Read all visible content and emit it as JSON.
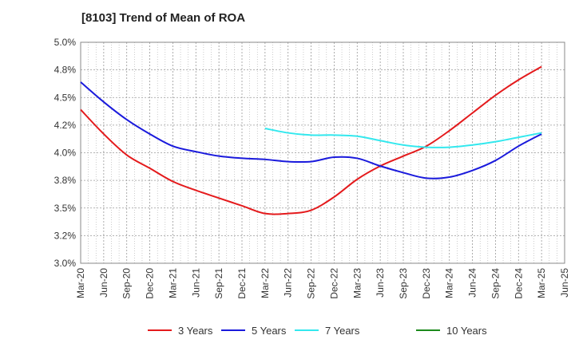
{
  "title": "[8103]  Trend of Mean of ROA",
  "chart_data": {
    "type": "line",
    "title": "[8103]  Trend of Mean of ROA",
    "xlabel": "",
    "ylabel": "",
    "ylim": [
      3.0,
      5.0
    ],
    "y_ticks": [
      "3.0%",
      "3.2%",
      "3.5%",
      "3.8%",
      "4.0%",
      "4.2%",
      "4.5%",
      "4.8%",
      "5.0%"
    ],
    "y_tick_values": [
      3.0,
      3.25,
      3.5,
      3.75,
      4.0,
      4.25,
      4.5,
      4.75,
      5.0
    ],
    "x_ticks": [
      "Mar-20",
      "Jun-20",
      "Sep-20",
      "Dec-20",
      "Mar-21",
      "Jun-21",
      "Sep-21",
      "Dec-21",
      "Mar-22",
      "Jun-22",
      "Sep-22",
      "Dec-22",
      "Mar-23",
      "Jun-23",
      "Sep-23",
      "Dec-23",
      "Mar-24",
      "Jun-24",
      "Sep-24",
      "Dec-24",
      "Mar-25",
      "Jun-25"
    ],
    "grid": true,
    "legend_position": "bottom",
    "series": [
      {
        "name": "3 Years",
        "color": "#e41a1c",
        "values": [
          4.39,
          4.17,
          3.98,
          3.86,
          3.74,
          3.66,
          3.59,
          3.52,
          3.45,
          3.45,
          3.48,
          3.6,
          3.76,
          3.88,
          3.97,
          4.06,
          4.2,
          4.36,
          4.52,
          4.66,
          4.78,
          null
        ]
      },
      {
        "name": "5 Years",
        "color": "#1a1adc",
        "values": [
          4.64,
          4.46,
          4.3,
          4.17,
          4.06,
          4.01,
          3.97,
          3.95,
          3.94,
          3.92,
          3.92,
          3.96,
          3.95,
          3.88,
          3.82,
          3.77,
          3.78,
          3.84,
          3.93,
          4.06,
          4.17,
          null
        ]
      },
      {
        "name": "7 Years",
        "color": "#33e8ee",
        "values": [
          null,
          null,
          null,
          null,
          null,
          null,
          null,
          null,
          4.22,
          4.18,
          4.16,
          4.16,
          4.15,
          4.11,
          4.07,
          4.05,
          4.05,
          4.07,
          4.1,
          4.14,
          4.18,
          null
        ]
      },
      {
        "name": "10 Years",
        "color": "#1c8a1c",
        "values": [
          null,
          null,
          null,
          null,
          null,
          null,
          null,
          null,
          null,
          null,
          null,
          null,
          null,
          null,
          null,
          null,
          null,
          null,
          null,
          null,
          null,
          null
        ]
      }
    ]
  }
}
